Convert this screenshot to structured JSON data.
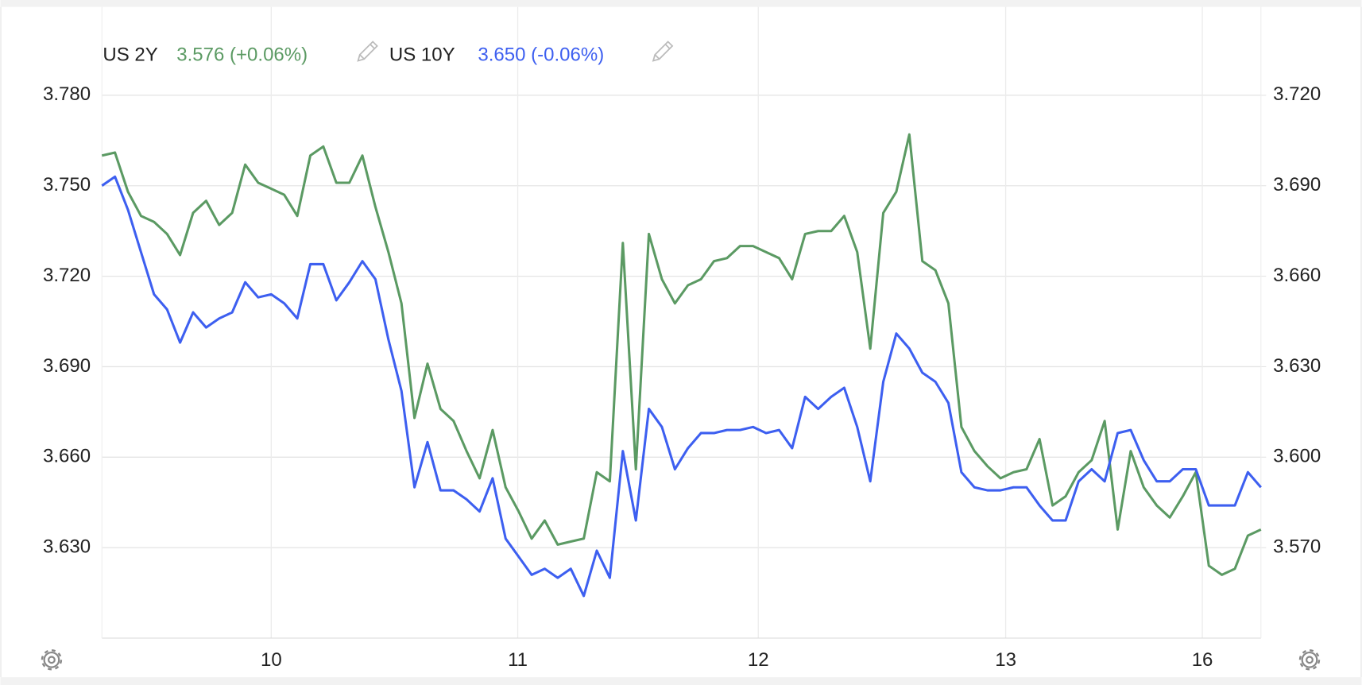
{
  "chart_data": {
    "type": "line",
    "xlim": [
      0,
      89
    ],
    "xticks": [
      {
        "value": 13,
        "label": "10"
      },
      {
        "value": 31.93,
        "label": "11"
      },
      {
        "value": 50.4,
        "label": "12"
      },
      {
        "value": 69.4,
        "label": "13"
      },
      {
        "value": 84.5,
        "label": "16"
      }
    ],
    "ylim": [
      3.6,
      3.79
    ],
    "yticks": [
      {
        "value": 3.78,
        "label": "3.780"
      },
      {
        "value": 3.75,
        "label": "3.750"
      },
      {
        "value": 3.72,
        "label": "3.720"
      },
      {
        "value": 3.69,
        "label": "3.690"
      },
      {
        "value": 3.66,
        "label": "3.660"
      },
      {
        "value": 3.63,
        "label": "3.630"
      }
    ],
    "y2lim": [
      3.54,
      3.73
    ],
    "y2ticks": [
      {
        "value": 3.72,
        "label": "3.720"
      },
      {
        "value": 3.69,
        "label": "3.690"
      },
      {
        "value": 3.66,
        "label": "3.660"
      },
      {
        "value": 3.63,
        "label": "3.630"
      },
      {
        "value": 3.6,
        "label": "3.600"
      },
      {
        "value": 3.57,
        "label": "3.570"
      }
    ],
    "grid": true,
    "series": [
      {
        "name": "US 2Y",
        "legend_value": "3.576 (+0.06%)",
        "color": "#5b9a63",
        "axis": "y2",
        "values": [
          3.7,
          3.701,
          3.688,
          3.68,
          3.678,
          3.674,
          3.667,
          3.681,
          3.685,
          3.677,
          3.681,
          3.697,
          3.691,
          3.689,
          3.687,
          3.68,
          3.7,
          3.703,
          3.691,
          3.691,
          3.7,
          3.683,
          3.668,
          3.651,
          3.613,
          3.631,
          3.616,
          3.612,
          3.602,
          3.593,
          3.609,
          3.59,
          3.582,
          3.573,
          3.579,
          3.571,
          3.572,
          3.573,
          3.595,
          3.592,
          3.671,
          3.596,
          3.674,
          3.659,
          3.651,
          3.657,
          3.659,
          3.665,
          3.666,
          3.67,
          3.67,
          3.668,
          3.666,
          3.659,
          3.674,
          3.675,
          3.675,
          3.68,
          3.668,
          3.636,
          3.681,
          3.688,
          3.707,
          3.665,
          3.662,
          3.651,
          3.61,
          3.602,
          3.597,
          3.593,
          3.595,
          3.596,
          3.606,
          3.584,
          3.587,
          3.595,
          3.599,
          3.612,
          3.576,
          3.602,
          3.59,
          3.584,
          3.58,
          3.587,
          3.595,
          3.564,
          3.561,
          3.563,
          3.574,
          3.576
        ]
      },
      {
        "name": "US 10Y",
        "legend_value": "3.650 (-0.06%)",
        "color": "#3d5ff0",
        "axis": "y",
        "values": [
          3.75,
          3.753,
          3.742,
          3.728,
          3.714,
          3.709,
          3.698,
          3.708,
          3.703,
          3.706,
          3.708,
          3.718,
          3.713,
          3.714,
          3.711,
          3.706,
          3.724,
          3.724,
          3.712,
          3.718,
          3.725,
          3.719,
          3.699,
          3.682,
          3.65,
          3.665,
          3.649,
          3.649,
          3.646,
          3.642,
          3.653,
          3.633,
          3.627,
          3.621,
          3.623,
          3.62,
          3.623,
          3.614,
          3.629,
          3.62,
          3.662,
          3.639,
          3.676,
          3.67,
          3.656,
          3.663,
          3.668,
          3.668,
          3.669,
          3.669,
          3.67,
          3.668,
          3.669,
          3.663,
          3.68,
          3.676,
          3.68,
          3.683,
          3.67,
          3.652,
          3.685,
          3.701,
          3.696,
          3.688,
          3.685,
          3.678,
          3.655,
          3.65,
          3.649,
          3.649,
          3.65,
          3.65,
          3.644,
          3.639,
          3.639,
          3.652,
          3.656,
          3.652,
          3.668,
          3.669,
          3.659,
          3.652,
          3.652,
          3.656,
          3.656,
          3.644,
          3.644,
          3.644,
          3.655,
          3.65
        ]
      }
    ]
  }
}
